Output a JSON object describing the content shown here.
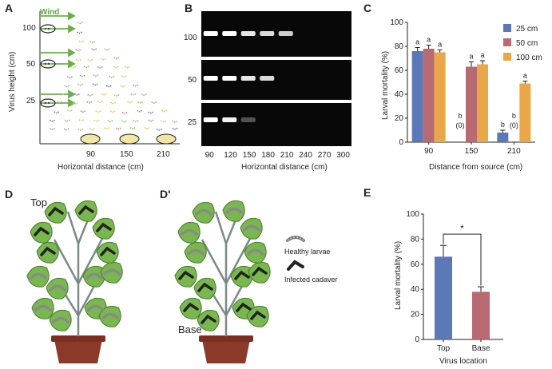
{
  "panels": {
    "A": {
      "letter": "A",
      "wind_label": "Wind",
      "ylabel": "Virus height (cm)",
      "xlabel": "Horizontal distance (cm)",
      "yticks": [
        "100",
        "50",
        "25"
      ],
      "xticks": [
        "90",
        "150",
        "210"
      ],
      "colors": {
        "wind": "#6ab04c",
        "dots_yellow": "#e8c44a",
        "dots_purple": "#7a6fb0",
        "dots_green": "#8cc060",
        "dots_red": "#d08080"
      }
    },
    "B": {
      "letter": "B",
      "row_labels": [
        "100",
        "50",
        "25"
      ],
      "xlabel": "Horizontal distance (cm)",
      "xticks": [
        "90",
        "120",
        "150",
        "180",
        "210",
        "240",
        "270",
        "300"
      ]
    },
    "C": {
      "letter": "C",
      "ylabel": "Larval mortality (%)",
      "xlabel": "Distance from source (cm)",
      "yticks": [
        "0",
        "20",
        "40",
        "60",
        "80",
        "100"
      ],
      "legend": [
        "25 cm",
        "50 cm",
        "100 cm"
      ],
      "letters_labels": {
        "g90": [
          "a",
          "a",
          "a"
        ],
        "g150": [
          "b",
          "a",
          "a"
        ],
        "g210": [
          "b",
          "b",
          "a"
        ],
        "zero_note": "(0)"
      }
    },
    "D": {
      "letter": "D",
      "top_label": "Top"
    },
    "Dp": {
      "letter": "D'",
      "base_label": "Base",
      "legend_healthy": "Healthy larvae",
      "legend_infected": "Infected cadaver"
    },
    "E": {
      "letter": "E",
      "ylabel": "Larval mortality (%)",
      "xlabel": "Virus location",
      "yticks": [
        "0",
        "20",
        "40",
        "60",
        "80",
        "100"
      ],
      "sig": "*"
    }
  },
  "chart_data": [
    {
      "type": "bar",
      "panel": "C",
      "categories": [
        "90",
        "150",
        "210"
      ],
      "series": [
        {
          "name": "25 cm",
          "color": "#5b79b8",
          "values": [
            76,
            0,
            8
          ],
          "errors": [
            3,
            0,
            2
          ]
        },
        {
          "name": "50 cm",
          "color": "#b86a72",
          "values": [
            78,
            63,
            0
          ],
          "errors": [
            3,
            4,
            0
          ]
        },
        {
          "name": "100 cm",
          "color": "#e9a74a",
          "values": [
            75,
            65,
            49
          ],
          "errors": [
            2,
            3,
            2
          ]
        }
      ],
      "ylabel": "Larval mortality (%)",
      "xlabel": "Distance from source (cm)",
      "ylim": [
        0,
        100
      ]
    },
    {
      "type": "bar",
      "panel": "E",
      "categories": [
        "Top",
        "Base"
      ],
      "values": [
        66,
        38
      ],
      "errors": [
        9,
        4
      ],
      "colors": [
        "#5b79b8",
        "#b86a72"
      ],
      "ylabel": "Larval mortality (%)",
      "xlabel": "Virus location",
      "ylim": [
        0,
        100
      ]
    }
  ]
}
